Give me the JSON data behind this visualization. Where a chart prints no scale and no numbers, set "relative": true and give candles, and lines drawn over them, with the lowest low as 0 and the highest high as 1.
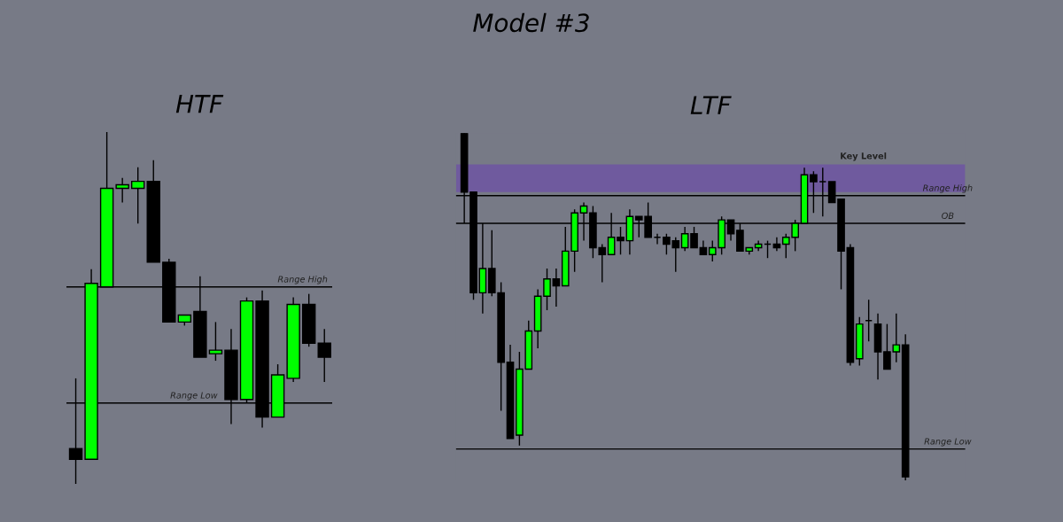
{
  "chart_data": [
    {
      "type": "candlestick",
      "annotations": [
        "Model #3"
      ],
      "subtitle": "HTF",
      "relative": true,
      "tick_labels": false,
      "categories": [
        null,
        null,
        null,
        null,
        null,
        null,
        null,
        null,
        null,
        null,
        null,
        null,
        null,
        null,
        null,
        null,
        null
      ],
      "ohlc": [
        [
          0.1,
          0.3,
          0.0,
          0.07
        ],
        [
          0.07,
          0.61,
          0.07,
          0.57
        ],
        [
          0.56,
          1.0,
          0.56,
          0.84
        ],
        [
          0.84,
          0.87,
          0.8,
          0.85
        ],
        [
          0.84,
          0.9,
          0.74,
          0.86
        ],
        [
          0.86,
          0.92,
          0.63,
          0.63
        ],
        [
          0.63,
          0.64,
          0.46,
          0.46
        ],
        [
          0.46,
          0.48,
          0.45,
          0.48
        ],
        [
          0.49,
          0.59,
          0.36,
          0.36
        ],
        [
          0.37,
          0.46,
          0.35,
          0.38
        ],
        [
          0.38,
          0.44,
          0.17,
          0.24
        ],
        [
          0.24,
          0.53,
          0.23,
          0.52
        ],
        [
          0.52,
          0.55,
          0.16,
          0.19
        ],
        [
          0.19,
          0.34,
          0.19,
          0.31
        ],
        [
          0.3,
          0.53,
          0.29,
          0.51
        ],
        [
          0.51,
          0.54,
          0.39,
          0.4
        ],
        [
          0.4,
          0.44,
          0.29,
          0.36
        ]
      ],
      "colors": [
        "#000000",
        "#00ff00",
        "#00ff00",
        "#00ff00",
        "#00ff00",
        "#000000",
        "#000000",
        "#00ff00",
        "#000000",
        "#00ff00",
        "#000000",
        "#00ff00",
        "#000000",
        "#00ff00",
        "#00ff00",
        "#000000",
        "#000000"
      ],
      "ref_lines": [
        {
          "axis": "y",
          "value": 0.56,
          "label": "Range High",
          "color": "#000000"
        },
        {
          "axis": "y",
          "value": 0.23,
          "label": "Range Low",
          "color": "#000000"
        }
      ]
    },
    {
      "type": "candlestick",
      "subtitle": "LTF",
      "relative": true,
      "tick_labels": false,
      "categories": [
        null,
        null,
        null,
        null,
        null,
        null,
        null,
        null,
        null,
        null,
        null,
        null,
        null,
        null,
        null,
        null,
        null,
        null,
        null,
        null,
        null,
        null,
        null,
        null,
        null,
        null,
        null,
        null,
        null,
        null,
        null,
        null,
        null,
        null,
        null,
        null,
        null,
        null,
        null,
        null,
        null,
        null,
        null,
        null,
        null,
        null,
        null,
        null,
        null
      ],
      "ohlc": [
        [
          1.0,
          1.0,
          0.74,
          0.83
        ],
        [
          0.83,
          0.83,
          0.52,
          0.54
        ],
        [
          0.54,
          0.74,
          0.48,
          0.61
        ],
        [
          0.61,
          0.72,
          0.53,
          0.54
        ],
        [
          0.54,
          0.57,
          0.2,
          0.34
        ],
        [
          0.34,
          0.39,
          0.12,
          0.12
        ],
        [
          0.13,
          0.37,
          0.1,
          0.32
        ],
        [
          0.32,
          0.46,
          0.32,
          0.43
        ],
        [
          0.43,
          0.55,
          0.38,
          0.53
        ],
        [
          0.53,
          0.61,
          0.49,
          0.58
        ],
        [
          0.58,
          0.61,
          0.5,
          0.56
        ],
        [
          0.56,
          0.73,
          0.56,
          0.66
        ],
        [
          0.66,
          0.78,
          0.6,
          0.77
        ],
        [
          0.77,
          0.8,
          0.69,
          0.79
        ],
        [
          0.77,
          0.79,
          0.64,
          0.67
        ],
        [
          0.67,
          0.68,
          0.57,
          0.65
        ],
        [
          0.65,
          0.77,
          0.65,
          0.7
        ],
        [
          0.7,
          0.73,
          0.65,
          0.69
        ],
        [
          0.69,
          0.78,
          0.65,
          0.76
        ],
        [
          0.76,
          0.76,
          0.7,
          0.75
        ],
        [
          0.76,
          0.8,
          0.7,
          0.7
        ],
        [
          0.7,
          0.71,
          0.68,
          0.7
        ],
        [
          0.7,
          0.71,
          0.65,
          0.68
        ],
        [
          0.69,
          0.7,
          0.6,
          0.67
        ],
        [
          0.67,
          0.73,
          0.66,
          0.71
        ],
        [
          0.71,
          0.73,
          0.67,
          0.67
        ],
        [
          0.67,
          0.69,
          0.65,
          0.65
        ],
        [
          0.65,
          0.69,
          0.63,
          0.67
        ],
        [
          0.67,
          0.76,
          0.65,
          0.75
        ],
        [
          0.75,
          0.75,
          0.69,
          0.71
        ],
        [
          0.72,
          0.74,
          0.66,
          0.66
        ],
        [
          0.66,
          0.67,
          0.65,
          0.67
        ],
        [
          0.67,
          0.69,
          0.66,
          0.68
        ],
        [
          0.68,
          0.69,
          0.64,
          0.68
        ],
        [
          0.68,
          0.7,
          0.66,
          0.67
        ],
        [
          0.68,
          0.71,
          0.64,
          0.7
        ],
        [
          0.7,
          0.75,
          0.66,
          0.74
        ],
        [
          0.74,
          0.9,
          0.74,
          0.88
        ],
        [
          0.88,
          0.89,
          0.77,
          0.86
        ],
        [
          0.86,
          0.9,
          0.76,
          0.86
        ],
        [
          0.86,
          0.86,
          0.8,
          0.8
        ],
        [
          0.81,
          0.81,
          0.55,
          0.66
        ],
        [
          0.67,
          0.68,
          0.33,
          0.34
        ],
        [
          0.35,
          0.47,
          0.33,
          0.45
        ],
        [
          0.46,
          0.52,
          0.4,
          0.46
        ],
        [
          0.45,
          0.48,
          0.29,
          0.37
        ],
        [
          0.37,
          0.45,
          0.32,
          0.32
        ],
        [
          0.37,
          0.48,
          0.34,
          0.39
        ],
        [
          0.39,
          0.42,
          0.0,
          0.01
        ]
      ],
      "colors": [
        "#000000",
        "#000000",
        "#00ff00",
        "#000000",
        "#000000",
        "#000000",
        "#00ff00",
        "#00ff00",
        "#00ff00",
        "#00ff00",
        "#000000",
        "#00ff00",
        "#00ff00",
        "#00ff00",
        "#000000",
        "#000000",
        "#00ff00",
        "#000000",
        "#00ff00",
        "#000000",
        "#000000",
        "#000000",
        "#000000",
        "#000000",
        "#00ff00",
        "#000000",
        "#000000",
        "#00ff00",
        "#00ff00",
        "#000000",
        "#000000",
        "#00ff00",
        "#00ff00",
        "#000000",
        "#000000",
        "#00ff00",
        "#00ff00",
        "#00ff00",
        "#000000",
        "#000000",
        "#000000",
        "#000000",
        "#000000",
        "#00ff00",
        "#000000",
        "#000000",
        "#000000",
        "#00ff00",
        "#000000"
      ],
      "bands": [
        {
          "axis": "y",
          "from": 0.83,
          "to": 0.91,
          "label": "Key Level",
          "color": "#6f5a9e"
        }
      ],
      "ref_lines": [
        {
          "axis": "y",
          "value": 0.82,
          "label": "Range High",
          "color": "#000000"
        },
        {
          "axis": "y",
          "value": 0.74,
          "label": "OB",
          "color": "#000000"
        },
        {
          "axis": "y",
          "value": 0.09,
          "label": "Range Low",
          "color": "#000000"
        }
      ]
    }
  ]
}
